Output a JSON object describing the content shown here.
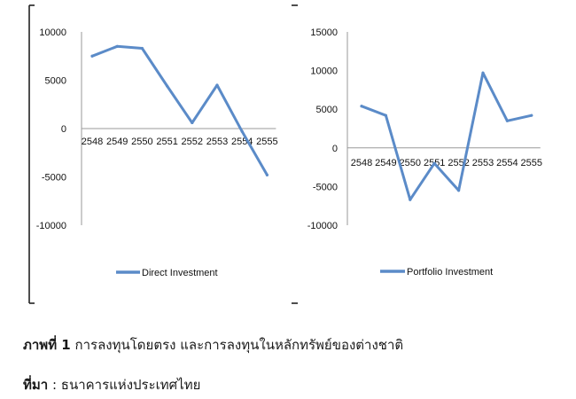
{
  "chart_data": [
    {
      "type": "line",
      "title": "",
      "xlabel": "",
      "ylabel": "",
      "categories": [
        "2548",
        "2549",
        "2550",
        "2551",
        "2552",
        "2553",
        "2554",
        "2555"
      ],
      "series": [
        {
          "name": "Direct Investment",
          "values": [
            7500,
            8500,
            8300,
            4400,
            600,
            4500,
            -300,
            -4800
          ]
        }
      ],
      "ylim": [
        -10000,
        10000
      ],
      "yticks": [
        "10000",
        "5000",
        "0",
        "-5000",
        "-10000"
      ],
      "grid": false,
      "legend": "bottom",
      "color": "#5b8bc8"
    },
    {
      "type": "line",
      "title": "",
      "xlabel": "",
      "ylabel": "",
      "categories": [
        "2548",
        "2549",
        "2550",
        "2551",
        "2552",
        "2553",
        "2554",
        "2555"
      ],
      "series": [
        {
          "name": "Portfolio Investment",
          "values": [
            5400,
            4200,
            -6700,
            -2000,
            -5500,
            9700,
            3500,
            4200
          ]
        }
      ],
      "ylim": [
        -10000,
        15000
      ],
      "yticks": [
        "15000",
        "10000",
        "5000",
        "0",
        "-5000",
        "-10000"
      ],
      "grid": false,
      "legend": "bottom",
      "color": "#5b8bc8"
    }
  ],
  "caption": {
    "figure_label": "ภาพที่ 1",
    "figure_text": "การลงทุนโดยตรง และการลงทุนในหลักทรัพย์ของต่างชาติ",
    "source_label": "ที่มา",
    "source_text": " : ธนาคารแห่งประเทศไทย"
  }
}
